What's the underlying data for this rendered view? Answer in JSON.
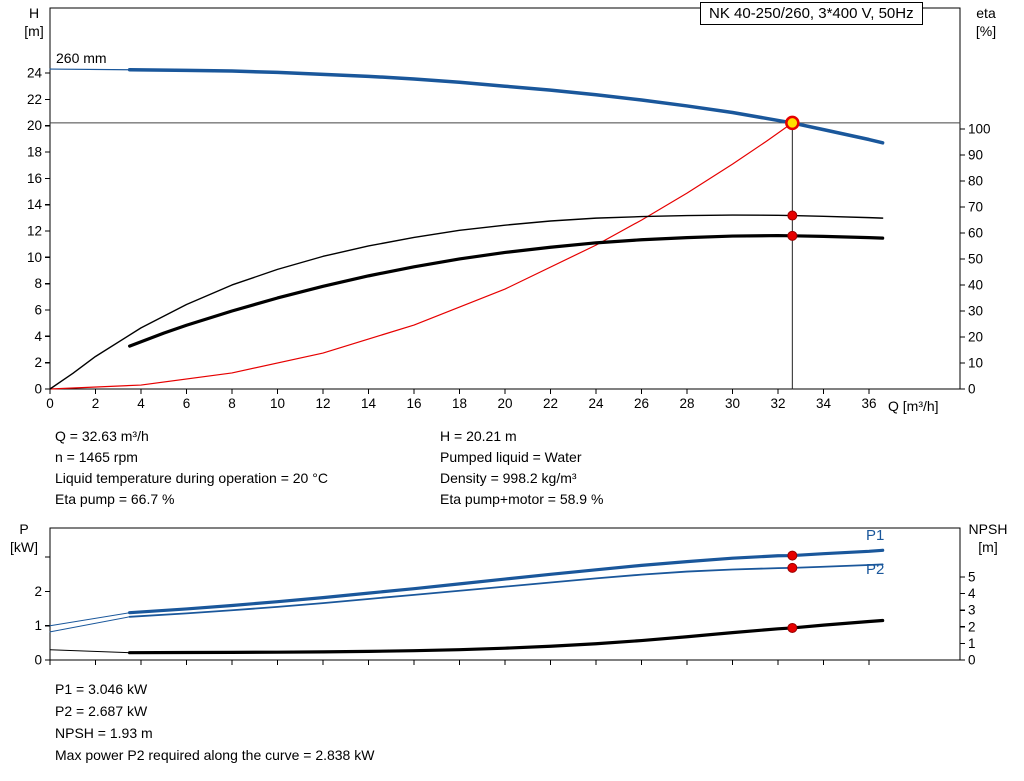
{
  "header": {
    "title_box": "NK 40-250/260, 3*400 V, 50Hz"
  },
  "labels": {
    "h_axis": "H",
    "h_unit": "[m]",
    "eta_axis": "eta",
    "eta_unit": "[%]",
    "q_axis": "Q [m³/h]",
    "impeller": "260 mm",
    "p_axis": "P",
    "p_unit": "[kW]",
    "npsh_axis": "NPSH",
    "npsh_unit": "[m]",
    "p1": "P1",
    "p2": "P2"
  },
  "info": {
    "top_left": [
      "Q = 32.63 m³/h",
      "n = 1465 rpm",
      "Liquid temperature during operation = 20 °C",
      "Eta pump = 66.7 %"
    ],
    "top_right": [
      "H = 20.21 m",
      "Pumped liquid = Water",
      "Density = 998.2 kg/m³",
      "Eta pump+motor = 58.9 %"
    ],
    "bottom": [
      "P1 = 3.046 kW",
      "P2 = 2.687 kW",
      "NPSH = 1.93 m",
      "Max power P2 required along the curve = 2.838 kW"
    ]
  },
  "colors": {
    "blue": "#1a579b",
    "red": "#e60000",
    "yellow": "#ffdf00",
    "black": "#000000",
    "gray": "#444444"
  },
  "duty_point": {
    "q": 32.63,
    "h": 20.21,
    "eta_pump": 66.7,
    "eta_pump_motor": 58.9,
    "p1": 3.046,
    "p2": 2.687,
    "npsh": 1.93
  },
  "chart_data": [
    {
      "type": "line",
      "title": "NK 40-250/260, 3*400 V, 50Hz",
      "xlabel": "Q [m³/h]",
      "ylabel": "H [m]",
      "y2label": "eta [%]",
      "plot": {
        "x0": 50,
        "y0": 8,
        "x1": 960,
        "y1": 389
      },
      "x": {
        "min": 0,
        "max": 40,
        "labels": true,
        "ticks": [
          0,
          2,
          4,
          6,
          8,
          10,
          12,
          14,
          16,
          18,
          20,
          22,
          24,
          26,
          28,
          30,
          32,
          34,
          36
        ]
      },
      "left": {
        "min": 0,
        "max": 28.94,
        "ticks": [
          0,
          2,
          4,
          6,
          8,
          10,
          12,
          14,
          16,
          18,
          20,
          22,
          24
        ],
        "minor": []
      },
      "right": {
        "min": 0,
        "max": 146.5,
        "ticks": [
          0,
          10,
          20,
          30,
          40,
          50,
          60,
          70,
          80,
          90,
          100
        ],
        "minor": []
      },
      "series": [
        {
          "name": "duty-horizontal-line",
          "axis": "left",
          "color": "#444444",
          "width": 1,
          "points": [
            [
              0,
              20.21
            ],
            [
              40,
              20.21
            ]
          ]
        },
        {
          "name": "duty-vertical-line",
          "axis": "left",
          "color": "#222222",
          "width": 1,
          "points": [
            [
              32.63,
              0
            ],
            [
              32.63,
              20.21
            ]
          ]
        },
        {
          "name": "system-curve",
          "axis": "left",
          "color": "#e60000",
          "width": 1.2,
          "points": [
            [
              0,
              0
            ],
            [
              4,
              0.3
            ],
            [
              8,
              1.22
            ],
            [
              12,
              2.73
            ],
            [
              16,
              4.86
            ],
            [
              20,
              7.59
            ],
            [
              24,
              10.93
            ],
            [
              26,
              12.83
            ],
            [
              28,
              14.88
            ],
            [
              30,
              17.08
            ],
            [
              31.5,
              18.83
            ],
            [
              32.63,
              20.21
            ]
          ]
        },
        {
          "name": "h-curve-lead",
          "axis": "left",
          "color": "#1a579b",
          "width": 1.2,
          "points": [
            [
              0,
              24.3
            ],
            [
              3.5,
              24.25
            ]
          ]
        },
        {
          "name": "h-curve-260mm",
          "axis": "left",
          "color": "#1a579b",
          "width": 3.5,
          "points": [
            [
              3.5,
              24.25
            ],
            [
              6,
              24.2
            ],
            [
              8,
              24.15
            ],
            [
              10,
              24.05
            ],
            [
              12,
              23.9
            ],
            [
              14,
              23.75
            ],
            [
              16,
              23.55
            ],
            [
              18,
              23.3
            ],
            [
              20,
              23.0
            ],
            [
              22,
              22.7
            ],
            [
              24,
              22.35
            ],
            [
              26,
              21.95
            ],
            [
              28,
              21.5
            ],
            [
              30,
              21.0
            ],
            [
              32,
              20.4
            ],
            [
              32.63,
              20.21
            ],
            [
              34,
              19.7
            ],
            [
              36,
              18.95
            ],
            [
              36.6,
              18.7
            ]
          ]
        },
        {
          "name": "eta-pump-curve",
          "axis": "right",
          "color": "#000000",
          "width": 1.4,
          "points": [
            [
              0,
              0
            ],
            [
              1,
              6
            ],
            [
              2,
              12.5
            ],
            [
              4,
              23.5
            ],
            [
              6,
              32.5
            ],
            [
              8,
              40
            ],
            [
              10,
              46
            ],
            [
              12,
              51
            ],
            [
              14,
              55
            ],
            [
              16,
              58.3
            ],
            [
              18,
              61
            ],
            [
              20,
              63
            ],
            [
              22,
              64.6
            ],
            [
              24,
              65.7
            ],
            [
              26,
              66.3
            ],
            [
              28,
              66.7
            ],
            [
              30,
              66.9
            ],
            [
              32,
              66.8
            ],
            [
              32.63,
              66.7
            ],
            [
              34,
              66.4
            ],
            [
              36,
              65.9
            ],
            [
              36.6,
              65.7
            ]
          ]
        },
        {
          "name": "eta-pump-motor-curve",
          "axis": "right",
          "color": "#000000",
          "width": 3.2,
          "points": [
            [
              3.5,
              16.5
            ],
            [
              5,
              21.5
            ],
            [
              6,
              24.5
            ],
            [
              8,
              30
            ],
            [
              10,
              35
            ],
            [
              12,
              39.5
            ],
            [
              14,
              43.5
            ],
            [
              16,
              47
            ],
            [
              18,
              50
            ],
            [
              20,
              52.5
            ],
            [
              22,
              54.5
            ],
            [
              24,
              56.2
            ],
            [
              26,
              57.4
            ],
            [
              28,
              58.2
            ],
            [
              30,
              58.8
            ],
            [
              32,
              59.0
            ],
            [
              32.63,
              58.9
            ],
            [
              34,
              58.7
            ],
            [
              36,
              58.2
            ],
            [
              36.6,
              58.0
            ]
          ]
        }
      ],
      "markers": [
        {
          "name": "eta-pump-dot",
          "x": 32.63,
          "y": 66.7,
          "axis": "right",
          "r": 4.5,
          "fill": "#e60000",
          "stroke": "#990000",
          "sw": 1
        },
        {
          "name": "eta-motor-dot",
          "x": 32.63,
          "y": 58.9,
          "axis": "right",
          "r": 4.5,
          "fill": "#e60000",
          "stroke": "#990000",
          "sw": 1
        },
        {
          "name": "duty-point",
          "x": 32.63,
          "y": 20.21,
          "axis": "left",
          "r": 6,
          "fill": "#ffdf00",
          "stroke": "#e60000",
          "sw": 2.5
        }
      ]
    },
    {
      "type": "line",
      "title": "Power and NPSH curves",
      "xlabel": "Q [m³/h]",
      "ylabel": "P [kW]",
      "y2label": "NPSH [m]",
      "plot": {
        "x0": 50,
        "y0": 528,
        "x1": 960,
        "y1": 660
      },
      "x": {
        "min": 0,
        "max": 40,
        "labels": false,
        "ticks": [
          0,
          2,
          4,
          6,
          8,
          10,
          12,
          14,
          16,
          18,
          20,
          22,
          24,
          26,
          28,
          30,
          32,
          34,
          36
        ]
      },
      "left": {
        "min": 0,
        "max": 3.85,
        "ticks": [
          0,
          1,
          2
        ],
        "minor": [
          3
        ]
      },
      "right": {
        "min": 0,
        "max": 7.95,
        "ticks": [
          0,
          1,
          2,
          3,
          4,
          5
        ],
        "minor": []
      },
      "series": [
        {
          "name": "p1-lead",
          "axis": "left",
          "color": "#1a579b",
          "width": 1,
          "points": [
            [
              0,
              1.0
            ],
            [
              3.5,
              1.38
            ]
          ]
        },
        {
          "name": "p2-lead",
          "axis": "left",
          "color": "#1a579b",
          "width": 1,
          "points": [
            [
              0,
              0.82
            ],
            [
              3.5,
              1.26
            ]
          ]
        },
        {
          "name": "npsh-lead",
          "axis": "right",
          "color": "#000000",
          "width": 1,
          "points": [
            [
              0,
              0.62
            ],
            [
              3.5,
              0.44
            ]
          ]
        },
        {
          "name": "p1-curve",
          "axis": "left",
          "color": "#1a579b",
          "width": 3.2,
          "points": [
            [
              3.5,
              1.38
            ],
            [
              6,
              1.49
            ],
            [
              8,
              1.59
            ],
            [
              10,
              1.7
            ],
            [
              12,
              1.82
            ],
            [
              14,
              1.95
            ],
            [
              16,
              2.08
            ],
            [
              18,
              2.22
            ],
            [
              20,
              2.36
            ],
            [
              22,
              2.5
            ],
            [
              24,
              2.63
            ],
            [
              26,
              2.76
            ],
            [
              28,
              2.87
            ],
            [
              30,
              2.97
            ],
            [
              32,
              3.04
            ],
            [
              32.63,
              3.046
            ],
            [
              34,
              3.1
            ],
            [
              36,
              3.17
            ],
            [
              36.6,
              3.2
            ]
          ]
        },
        {
          "name": "p2-curve",
          "axis": "left",
          "color": "#1a579b",
          "width": 1.8,
          "points": [
            [
              3.5,
              1.26
            ],
            [
              6,
              1.36
            ],
            [
              8,
              1.45
            ],
            [
              10,
              1.55
            ],
            [
              12,
              1.66
            ],
            [
              14,
              1.78
            ],
            [
              16,
              1.9
            ],
            [
              18,
              2.02
            ],
            [
              20,
              2.14
            ],
            [
              22,
              2.26
            ],
            [
              24,
              2.38
            ],
            [
              26,
              2.49
            ],
            [
              28,
              2.58
            ],
            [
              30,
              2.64
            ],
            [
              32,
              2.68
            ],
            [
              32.63,
              2.687
            ],
            [
              34,
              2.72
            ],
            [
              36,
              2.77
            ],
            [
              36.6,
              2.79
            ]
          ]
        },
        {
          "name": "npsh-curve",
          "axis": "right",
          "color": "#000000",
          "width": 3.2,
          "points": [
            [
              3.5,
              0.44
            ],
            [
              6,
              0.45
            ],
            [
              8,
              0.46
            ],
            [
              10,
              0.47
            ],
            [
              12,
              0.49
            ],
            [
              14,
              0.52
            ],
            [
              16,
              0.56
            ],
            [
              18,
              0.62
            ],
            [
              20,
              0.71
            ],
            [
              22,
              0.83
            ],
            [
              24,
              0.98
            ],
            [
              26,
              1.17
            ],
            [
              28,
              1.4
            ],
            [
              30,
              1.65
            ],
            [
              32,
              1.88
            ],
            [
              32.63,
              1.93
            ],
            [
              34,
              2.1
            ],
            [
              36,
              2.32
            ],
            [
              36.6,
              2.38
            ]
          ]
        }
      ],
      "markers": [
        {
          "name": "p1-dot",
          "x": 32.63,
          "y": 3.046,
          "axis": "left",
          "r": 4.5,
          "fill": "#e60000",
          "stroke": "#990000",
          "sw": 1
        },
        {
          "name": "p2-dot",
          "x": 32.63,
          "y": 2.687,
          "axis": "left",
          "r": 4.5,
          "fill": "#e60000",
          "stroke": "#990000",
          "sw": 1
        },
        {
          "name": "npsh-dot",
          "x": 32.63,
          "y": 1.93,
          "axis": "right",
          "r": 4.5,
          "fill": "#e60000",
          "stroke": "#990000",
          "sw": 1
        }
      ]
    }
  ]
}
